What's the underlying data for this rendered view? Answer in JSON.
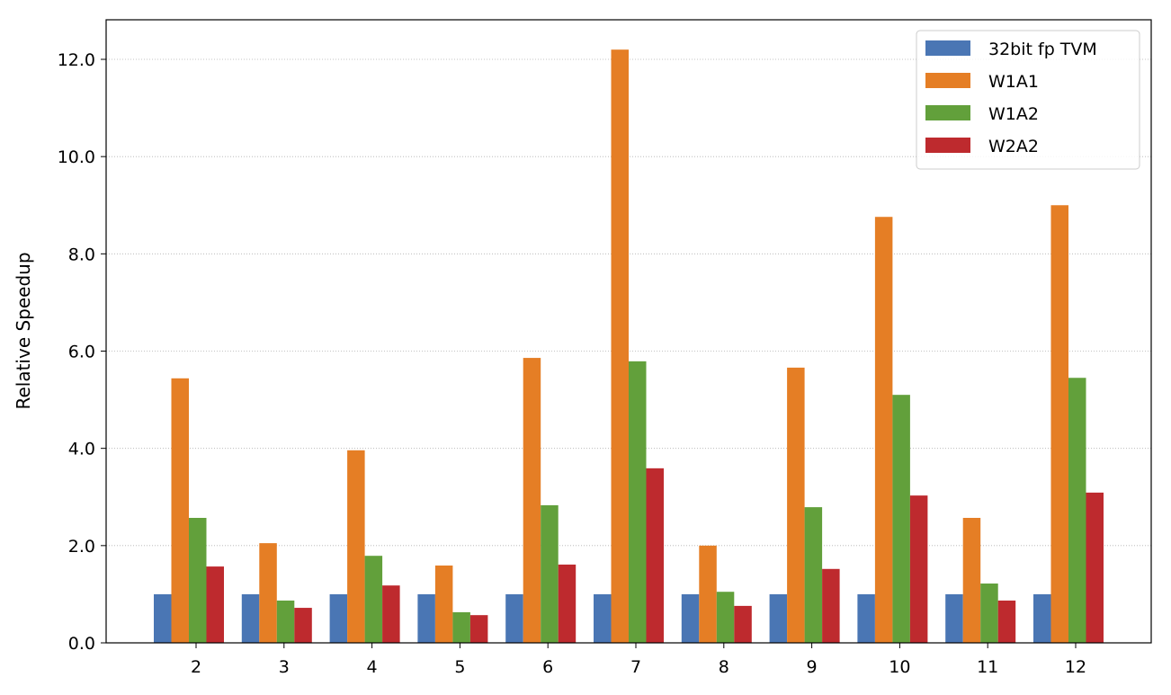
{
  "chart_data": {
    "type": "bar",
    "title": "",
    "xlabel": "",
    "ylabel": "Relative Speedup",
    "ylim": [
      0,
      12.8
    ],
    "yticks": [
      "0.0",
      "2.0",
      "4.0",
      "6.0",
      "8.0",
      "10.0",
      "12.0"
    ],
    "grid": "horizontal dotted",
    "legend_position": "top-right",
    "categories": [
      "2",
      "3",
      "4",
      "5",
      "6",
      "7",
      "8",
      "9",
      "10",
      "11",
      "12"
    ],
    "series": [
      {
        "name": "32bit fp TVM",
        "color": "#4a76b4",
        "values": [
          1,
          1,
          1,
          1,
          1,
          1,
          1,
          1,
          1,
          1,
          1
        ]
      },
      {
        "name": "W1A1",
        "color": "#e57e25",
        "values": [
          5.44,
          2.05,
          3.96,
          1.59,
          5.86,
          12.2,
          2.0,
          5.66,
          8.76,
          2.57,
          9.0
        ]
      },
      {
        "name": "W1A2",
        "color": "#62a03b",
        "values": [
          2.57,
          0.87,
          1.79,
          0.63,
          2.83,
          5.79,
          1.05,
          2.79,
          5.1,
          1.22,
          5.45
        ]
      },
      {
        "name": "W2A2",
        "color": "#be2a2e",
        "values": [
          1.57,
          0.72,
          1.18,
          0.57,
          1.61,
          3.59,
          0.76,
          1.52,
          3.03,
          0.87,
          3.09
        ]
      }
    ]
  }
}
